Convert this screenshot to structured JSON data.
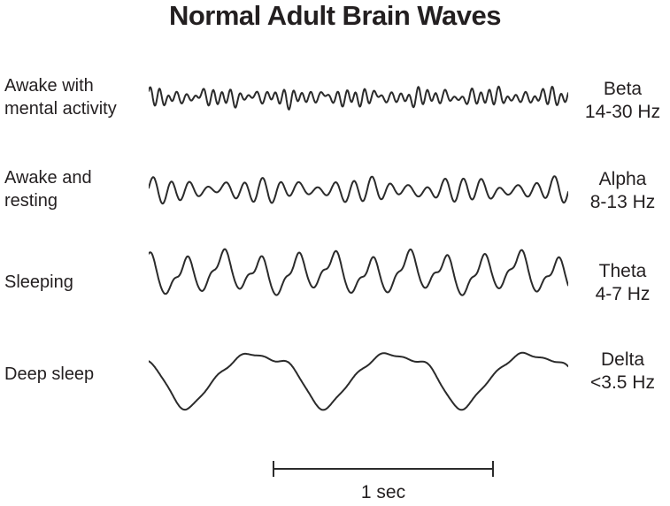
{
  "title": "Normal Adult Brain Waves",
  "stroke_color": "#2b2b2b",
  "text_color": "#231f20",
  "rows": [
    {
      "id": "beta",
      "label_lines": [
        "Awake with",
        "mental activity"
      ],
      "band": "Beta",
      "freq_range": "14-30 Hz",
      "wave": {
        "scale": 6.5,
        "components": [
          {
            "cycles": 47,
            "amp": 0.9,
            "phase": 0.3,
            "mod": {
              "cycles": 6.3,
              "depth": 0.45,
              "phase": 1.0
            }
          },
          {
            "cycles": 31,
            "amp": 0.45,
            "phase": 2.1
          },
          {
            "cycles": 17,
            "amp": 0.25,
            "phase": 0.8
          },
          {
            "cycles": 7.3,
            "amp": 0.18,
            "phase": 1.9
          }
        ]
      }
    },
    {
      "id": "alpha",
      "label_lines": [
        "Awake and",
        "resting"
      ],
      "band": "Alpha",
      "freq_range": "8-13 Hz",
      "wave": {
        "scale": 9,
        "components": [
          {
            "cycles": 23,
            "amp": 1.0,
            "phase": 0.0,
            "mod": {
              "cycles": 4.2,
              "depth": 0.5,
              "phase": 0.7
            }
          },
          {
            "cycles": 11.5,
            "amp": 0.22,
            "phase": 1.3
          },
          {
            "cycles": 5.1,
            "amp": 0.15,
            "phase": 2.6
          }
        ]
      }
    },
    {
      "id": "theta",
      "label_lines": [
        "Sleeping"
      ],
      "band": "Theta",
      "freq_range": "4-7 Hz",
      "wave": {
        "scale": 13,
        "components": [
          {
            "cycles": 11.3,
            "amp": 1.4,
            "phase": 1.6
          },
          {
            "cycles": 22.6,
            "amp": 0.45,
            "phase": 0.2
          },
          {
            "cycles": 4.4,
            "amp": 0.35,
            "phase": 2.8
          },
          {
            "cycles": 33.9,
            "amp": 0.12,
            "phase": 1.1
          }
        ]
      }
    },
    {
      "id": "delta",
      "label_lines": [
        "Deep sleep"
      ],
      "band": "Delta",
      "freq_range": "<3.5 Hz",
      "wave": {
        "scale": 13.5,
        "components": [
          {
            "cycles": 3.05,
            "amp": 2.1,
            "phase": 2.9
          },
          {
            "cycles": 6.1,
            "amp": 0.55,
            "phase": 1.1
          },
          {
            "cycles": 9.15,
            "amp": 0.25,
            "phase": 0.3
          },
          {
            "cycles": 18,
            "amp": 0.1,
            "phase": 1.8
          }
        ]
      }
    }
  ],
  "scale_bar": {
    "label": "1 sec",
    "duration_sec": 1
  }
}
